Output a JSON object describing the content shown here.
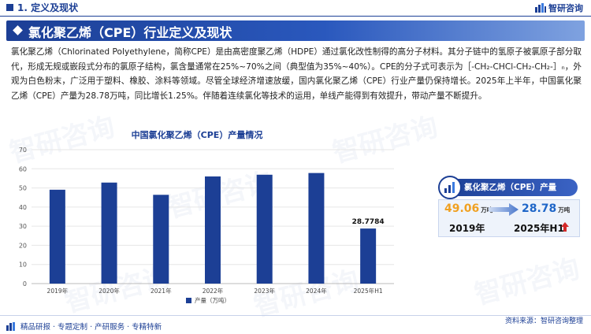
{
  "header": {
    "section_title": "1. 定义及现状",
    "brand": "智研咨询"
  },
  "banner": {
    "title": "氯化聚乙烯（CPE）行业定义及现状"
  },
  "body_text": "氯化聚乙烯（Chlorinated Polyethylene，简称CPE）是由高密度聚乙烯（HDPE）通过氯化改性制得的高分子材料。其分子链中的氢原子被氯原子部分取代，形成无规或嵌段式分布的氯原子结构，氯含量通常在25%~70%之间（典型值为35%~40%）。CPE的分子式可表示为［-CH₂-CHCl-CH₂-CH₂-］ₙ，外观为白色粉末，广泛用于塑料、橡胶、涂料等领域。尽管全球经济增速放缓，国内氯化聚乙烯（CPE）行业产量仍保持增长。2025年上半年，中国氯化聚乙烯（CPE）产量为28.78万吨，同比增长1.25%。伴随着连续氯化等技术的运用，单线产能得到有效提升，带动产量不断提升。",
  "chart_data": {
    "type": "bar",
    "title": "中国氯化聚乙烯（CPE）产量情况",
    "categories": [
      "2019年",
      "2020年",
      "2021年",
      "2022年",
      "2023年",
      "2024年",
      "2025年H1"
    ],
    "series": [
      {
        "name": "产量（万吨）",
        "values": [
          49.06,
          52.8,
          46.4,
          56.0,
          56.9,
          57.8,
          28.7784
        ],
        "color": "#1c3f95"
      }
    ],
    "data_labels": [
      {
        "index": 6,
        "text": "28.7784"
      }
    ],
    "ylim": [
      0,
      70
    ],
    "yticks": [
      0,
      10,
      20,
      30,
      40,
      50,
      60,
      70
    ],
    "grid": true,
    "legend": "bottom"
  },
  "right_panel": {
    "title": "氯化聚乙烯（CPE）产量",
    "left_value": "49.06",
    "left_unit": "万吨",
    "left_year": "2019年",
    "right_value": "28.78",
    "right_unit": "万吨",
    "right_year": "2025年H1",
    "accent_left": "#f0a020",
    "accent_right": "#1f66c8",
    "trend_icon": "red-up-arrow-icon"
  },
  "footer": {
    "left": "精品研报 · 专题定制 · 产研服务 · 专精特新",
    "source_prefix": "资料来源：",
    "source": "智研咨询整理"
  }
}
